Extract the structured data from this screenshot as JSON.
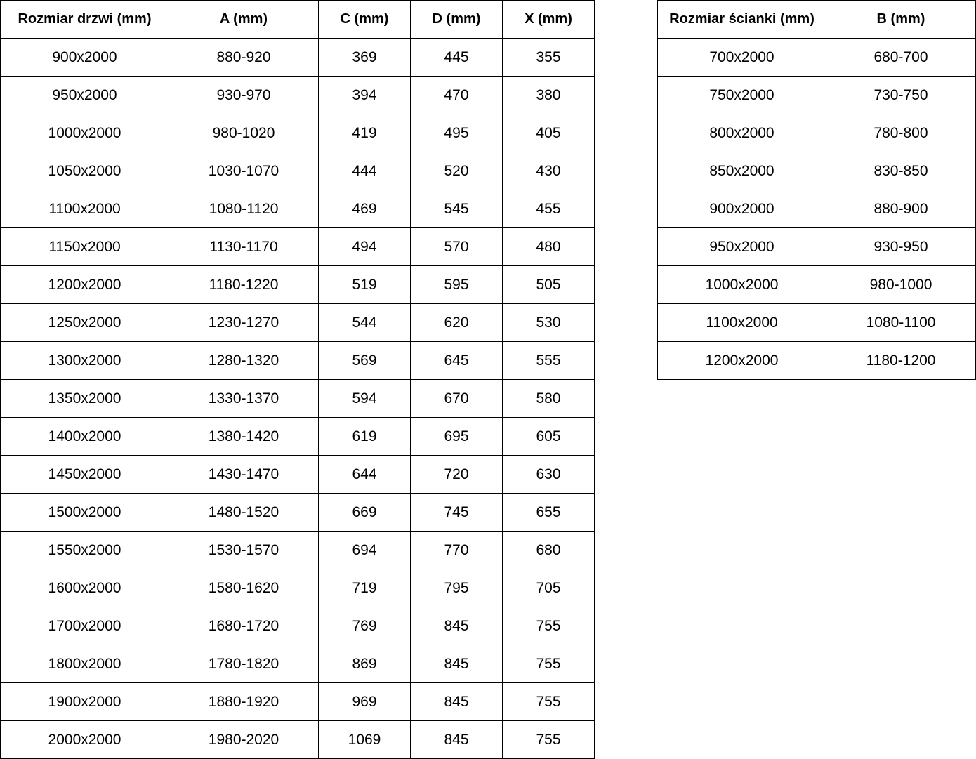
{
  "door_table": {
    "headers": [
      "Rozmiar drzwi (mm)",
      "A (mm)",
      "C (mm)",
      "D (mm)",
      "X (mm)"
    ],
    "rows": [
      [
        "900x2000",
        "880-920",
        "369",
        "445",
        "355"
      ],
      [
        "950x2000",
        "930-970",
        "394",
        "470",
        "380"
      ],
      [
        "1000x2000",
        "980-1020",
        "419",
        "495",
        "405"
      ],
      [
        "1050x2000",
        "1030-1070",
        "444",
        "520",
        "430"
      ],
      [
        "1100x2000",
        "1080-1120",
        "469",
        "545",
        "455"
      ],
      [
        "1150x2000",
        "1130-1170",
        "494",
        "570",
        "480"
      ],
      [
        "1200x2000",
        "1180-1220",
        "519",
        "595",
        "505"
      ],
      [
        "1250x2000",
        "1230-1270",
        "544",
        "620",
        "530"
      ],
      [
        "1300x2000",
        "1280-1320",
        "569",
        "645",
        "555"
      ],
      [
        "1350x2000",
        "1330-1370",
        "594",
        "670",
        "580"
      ],
      [
        "1400x2000",
        "1380-1420",
        "619",
        "695",
        "605"
      ],
      [
        "1450x2000",
        "1430-1470",
        "644",
        "720",
        "630"
      ],
      [
        "1500x2000",
        "1480-1520",
        "669",
        "745",
        "655"
      ],
      [
        "1550x2000",
        "1530-1570",
        "694",
        "770",
        "680"
      ],
      [
        "1600x2000",
        "1580-1620",
        "719",
        "795",
        "705"
      ],
      [
        "1700x2000",
        "1680-1720",
        "769",
        "845",
        "755"
      ],
      [
        "1800x2000",
        "1780-1820",
        "869",
        "845",
        "755"
      ],
      [
        "1900x2000",
        "1880-1920",
        "969",
        "845",
        "755"
      ],
      [
        "2000x2000",
        "1980-2020",
        "1069",
        "845",
        "755"
      ]
    ]
  },
  "wall_table": {
    "headers": [
      "Rozmiar ścianki (mm)",
      "B (mm)"
    ],
    "rows": [
      [
        "700x2000",
        "680-700"
      ],
      [
        "750x2000",
        "730-750"
      ],
      [
        "800x2000",
        "780-800"
      ],
      [
        "850x2000",
        "830-850"
      ],
      [
        "900x2000",
        "880-900"
      ],
      [
        "950x2000",
        "930-950"
      ],
      [
        "1000x2000",
        "980-1000"
      ],
      [
        "1100x2000",
        "1080-1100"
      ],
      [
        "1200x2000",
        "1180-1200"
      ]
    ]
  }
}
